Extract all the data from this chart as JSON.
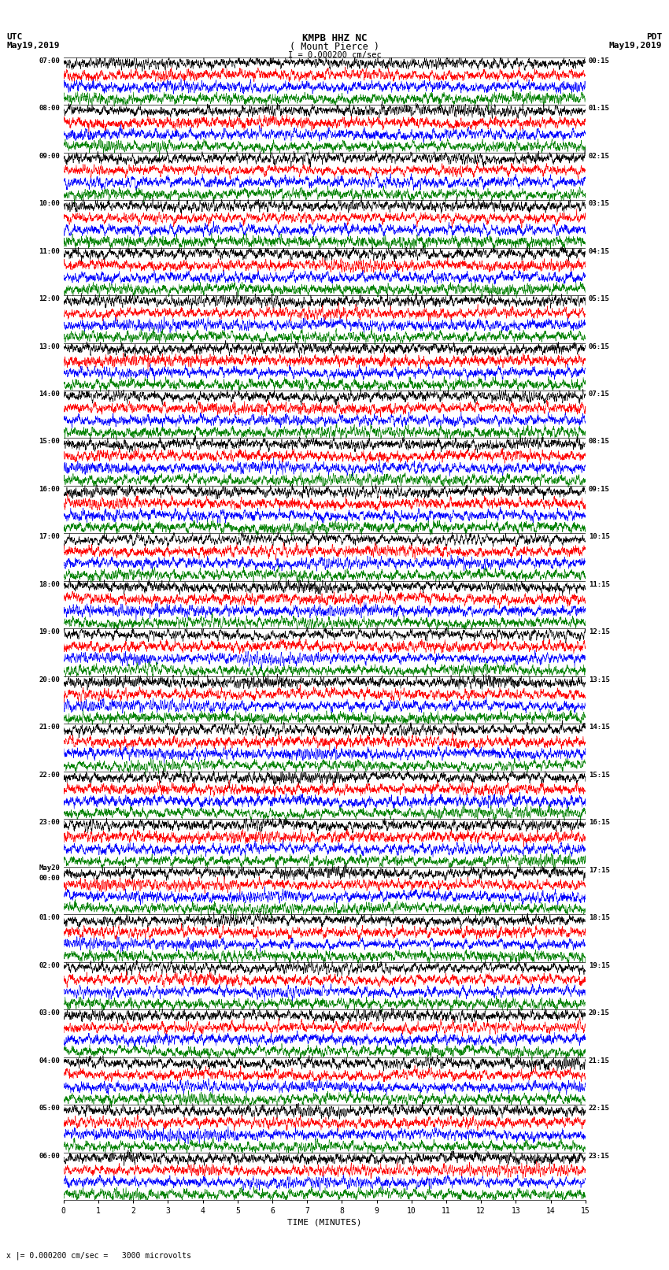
{
  "title_line1": "KMPB HHZ NC",
  "title_line2": "( Mount Pierce )",
  "scale_text": "I = 0.000200 cm/sec",
  "left_label_top": "UTC",
  "left_label_date": "May19,2019",
  "right_label_top": "PDT",
  "right_label_date": "May19,2019",
  "bottom_note": "x |= 0.000200 cm/sec =   3000 microvolts",
  "xlabel": "TIME (MINUTES)",
  "left_times": [
    "07:00",
    "08:00",
    "09:00",
    "10:00",
    "11:00",
    "12:00",
    "13:00",
    "14:00",
    "15:00",
    "16:00",
    "17:00",
    "18:00",
    "19:00",
    "20:00",
    "21:00",
    "22:00",
    "23:00",
    "May20\n00:00",
    "01:00",
    "02:00",
    "03:00",
    "04:00",
    "05:00",
    "06:00"
  ],
  "right_times": [
    "00:15",
    "01:15",
    "02:15",
    "03:15",
    "04:15",
    "05:15",
    "06:15",
    "07:15",
    "08:15",
    "09:15",
    "10:15",
    "11:15",
    "12:15",
    "13:15",
    "14:15",
    "15:15",
    "16:15",
    "17:15",
    "18:15",
    "19:15",
    "20:15",
    "21:15",
    "22:15",
    "23:15"
  ],
  "n_rows": 24,
  "n_traces_per_row": 4,
  "colors": [
    "black",
    "red",
    "blue",
    "green"
  ],
  "xlim": [
    0,
    15
  ],
  "xticks": [
    0,
    1,
    2,
    3,
    4,
    5,
    6,
    7,
    8,
    9,
    10,
    11,
    12,
    13,
    14,
    15
  ],
  "background_color": "white",
  "fig_width": 8.5,
  "fig_height": 16.13
}
